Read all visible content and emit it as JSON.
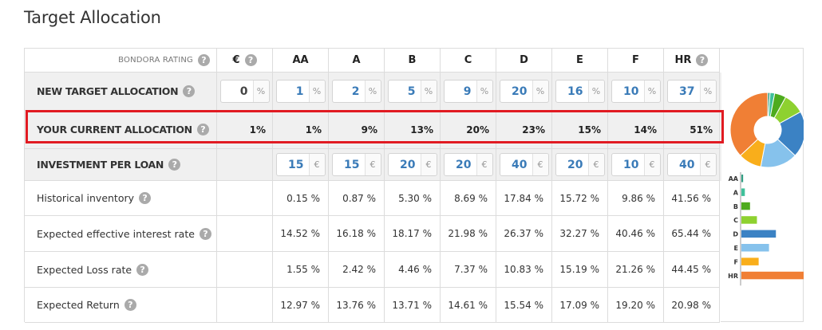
{
  "title": "Target Allocation",
  "columns": [
    "€",
    "AA",
    "A",
    "B",
    "C",
    "D",
    "E",
    "F",
    "HR"
  ],
  "rating_label": "BONDORA RATING",
  "rows": {
    "new_target": {
      "label": "NEW TARGET ALLOCATION",
      "unit": "%",
      "values": [
        "0",
        "1",
        "2",
        "5",
        "9",
        "20",
        "16",
        "10",
        "37"
      ]
    },
    "current": {
      "label": "YOUR CURRENT ALLOCATION",
      "values": [
        "1%",
        "1%",
        "9%",
        "13%",
        "20%",
        "23%",
        "15%",
        "14%",
        "51%"
      ]
    },
    "investment": {
      "label": "INVESTMENT PER LOAN",
      "unit": "€",
      "values": [
        "15",
        "15",
        "20",
        "20",
        "40",
        "20",
        "10",
        "40"
      ]
    },
    "historical": {
      "label": "Historical inventory",
      "values": [
        "0.15 %",
        "0.87 %",
        "5.30 %",
        "8.69 %",
        "17.84 %",
        "15.72 %",
        "9.86 %",
        "41.56 %"
      ]
    },
    "interest": {
      "label": "Expected effective interest rate",
      "values": [
        "14.52 %",
        "16.18 %",
        "18.17 %",
        "21.98 %",
        "26.37 %",
        "32.27 %",
        "40.46 %",
        "65.44 %"
      ]
    },
    "loss": {
      "label": "Expected Loss rate",
      "values": [
        "1.55 %",
        "2.42 %",
        "4.46 %",
        "7.37 %",
        "10.83 %",
        "15.19 %",
        "21.26 %",
        "44.45 %"
      ]
    },
    "return": {
      "label": "Expected Return",
      "values": [
        "12.97 %",
        "13.76 %",
        "13.71 %",
        "14.61 %",
        "15.54 %",
        "17.09 %",
        "19.20 %",
        "20.98 %"
      ]
    }
  },
  "chart_data": [
    {
      "type": "pie",
      "categories": [
        "AA",
        "A",
        "B",
        "C",
        "D",
        "E",
        "F",
        "HR"
      ],
      "values": [
        1,
        2,
        5,
        9,
        20,
        16,
        10,
        37
      ],
      "colors": [
        "#2f9e83",
        "#3fc09a",
        "#4eab1e",
        "#8ed130",
        "#3b82c4",
        "#86c2ec",
        "#f9ae1b",
        "#f07f35"
      ]
    },
    {
      "type": "bar",
      "categories": [
        "AA",
        "A",
        "B",
        "C",
        "D",
        "E",
        "F",
        "HR"
      ],
      "values": [
        1,
        2,
        5,
        9,
        20,
        16,
        10,
        37
      ],
      "colors": [
        "#2f9e83",
        "#3fc09a",
        "#4eab1e",
        "#8ed130",
        "#3b82c4",
        "#86c2ec",
        "#f9ae1b",
        "#f07f35"
      ]
    }
  ]
}
